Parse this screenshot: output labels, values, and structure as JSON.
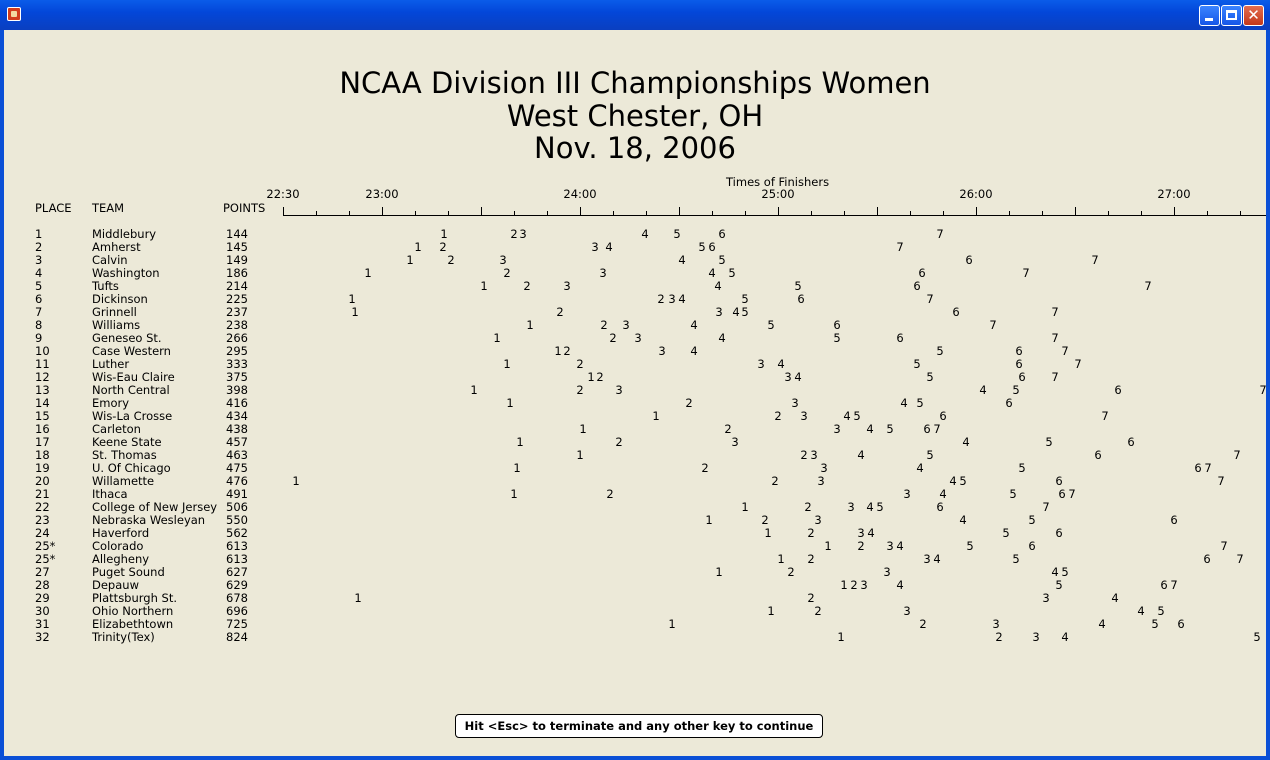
{
  "window": {
    "title": ""
  },
  "page_title": [
    "NCAA Division III Championships Women",
    "West Chester, OH",
    "Nov. 18, 2006"
  ],
  "axis": {
    "title": "Times of Finishers",
    "ticks": [
      "22:30",
      "23:00",
      "24:00",
      "25:00",
      "26:00",
      "27:00"
    ]
  },
  "columns": {
    "place": "PLACE",
    "team": "TEAM",
    "points": "POINTS"
  },
  "teams": [
    {
      "place": "1",
      "team": "Middlebury",
      "points": "144",
      "finishers": [
        [
          "1",
          444
        ],
        [
          "2",
          514
        ],
        [
          "3",
          523
        ],
        [
          "4",
          645
        ],
        [
          "5",
          677
        ],
        [
          "6",
          722
        ],
        [
          "7",
          940
        ]
      ]
    },
    {
      "place": "2",
      "team": "Amherst",
      "points": "145",
      "finishers": [
        [
          "1",
          418
        ],
        [
          "2",
          443
        ],
        [
          "3",
          595
        ],
        [
          "4",
          609
        ],
        [
          "5",
          702
        ],
        [
          "6",
          712
        ],
        [
          "7",
          900
        ]
      ]
    },
    {
      "place": "3",
      "team": "Calvin",
      "points": "149",
      "finishers": [
        [
          "1",
          410
        ],
        [
          "2",
          451
        ],
        [
          "3",
          503
        ],
        [
          "4",
          682
        ],
        [
          "5",
          722
        ],
        [
          "6",
          969
        ],
        [
          "7",
          1095
        ]
      ]
    },
    {
      "place": "4",
      "team": "Washington",
      "points": "186",
      "finishers": [
        [
          "1",
          368
        ],
        [
          "2",
          507
        ],
        [
          "3",
          603
        ],
        [
          "4",
          712
        ],
        [
          "5",
          732
        ],
        [
          "6",
          922
        ],
        [
          "7",
          1026
        ]
      ]
    },
    {
      "place": "5",
      "team": "Tufts",
      "points": "214",
      "finishers": [
        [
          "1",
          484
        ],
        [
          "2",
          527
        ],
        [
          "3",
          567
        ],
        [
          "4",
          718
        ],
        [
          "5",
          798
        ],
        [
          "6",
          917
        ],
        [
          "7",
          1148
        ]
      ]
    },
    {
      "place": "6",
      "team": "Dickinson",
      "points": "225",
      "finishers": [
        [
          "1",
          352
        ],
        [
          "2",
          661
        ],
        [
          "3",
          672
        ],
        [
          "4",
          682
        ],
        [
          "5",
          745
        ],
        [
          "6",
          801
        ],
        [
          "7",
          930
        ]
      ]
    },
    {
      "place": "7",
      "team": "Grinnell",
      "points": "237",
      "finishers": [
        [
          "1",
          355
        ],
        [
          "2",
          560
        ],
        [
          "3",
          719
        ],
        [
          "4",
          736
        ],
        [
          "5",
          745
        ],
        [
          "6",
          956
        ],
        [
          "7",
          1055
        ]
      ]
    },
    {
      "place": "8",
      "team": "Williams",
      "points": "238",
      "finishers": [
        [
          "1",
          530
        ],
        [
          "2",
          604
        ],
        [
          "3",
          626
        ],
        [
          "4",
          694
        ],
        [
          "5",
          771
        ],
        [
          "6",
          837
        ],
        [
          "7",
          993
        ]
      ]
    },
    {
      "place": "9",
      "team": "Geneseo St.",
      "points": "266",
      "finishers": [
        [
          "1",
          497
        ],
        [
          "2",
          613
        ],
        [
          "3",
          638
        ],
        [
          "4",
          722
        ],
        [
          "5",
          837
        ],
        [
          "6",
          900
        ],
        [
          "7",
          1055
        ]
      ]
    },
    {
      "place": "10",
      "team": "Case Western",
      "points": "295",
      "finishers": [
        [
          "1",
          558
        ],
        [
          "2",
          567
        ],
        [
          "3",
          662
        ],
        [
          "4",
          694
        ],
        [
          "5",
          940
        ],
        [
          "6",
          1019
        ],
        [
          "7",
          1065
        ]
      ]
    },
    {
      "place": "11",
      "team": "Luther",
      "points": "333",
      "finishers": [
        [
          "1",
          507
        ],
        [
          "2",
          580
        ],
        [
          "3",
          761
        ],
        [
          "4",
          781
        ],
        [
          "5",
          917
        ],
        [
          "6",
          1019
        ],
        [
          "7",
          1078
        ]
      ]
    },
    {
      "place": "12",
      "team": "Wis-Eau Claire",
      "points": "375",
      "finishers": [
        [
          "1",
          591
        ],
        [
          "2",
          600
        ],
        [
          "3",
          788
        ],
        [
          "4",
          798
        ],
        [
          "5",
          930
        ],
        [
          "6",
          1022
        ],
        [
          "7",
          1055
        ]
      ]
    },
    {
      "place": "13",
      "team": "North Central",
      "points": "398",
      "finishers": [
        [
          "1",
          474
        ],
        [
          "2",
          580
        ],
        [
          "3",
          619
        ],
        [
          "4",
          983
        ],
        [
          "5",
          1016
        ],
        [
          "6",
          1118
        ],
        [
          "7",
          1263
        ]
      ]
    },
    {
      "place": "14",
      "team": "Emory",
      "points": "416",
      "finishers": [
        [
          "1",
          510
        ],
        [
          "2",
          689
        ],
        [
          "3",
          795
        ],
        [
          "4",
          904
        ],
        [
          "5",
          920
        ],
        [
          "6",
          1009
        ]
      ]
    },
    {
      "place": "15",
      "team": "Wis-La Crosse",
      "points": "434",
      "finishers": [
        [
          "1",
          656
        ],
        [
          "2",
          778
        ],
        [
          "3",
          804
        ],
        [
          "4",
          847
        ],
        [
          "5",
          857
        ],
        [
          "6",
          943
        ],
        [
          "7",
          1105
        ]
      ]
    },
    {
      "place": "16",
      "team": "Carleton",
      "points": "438",
      "finishers": [
        [
          "1",
          583
        ],
        [
          "2",
          728
        ],
        [
          "3",
          837
        ],
        [
          "4",
          870
        ],
        [
          "5",
          890
        ],
        [
          "6",
          927
        ],
        [
          "7",
          937
        ]
      ]
    },
    {
      "place": "17",
      "team": "Keene State",
      "points": "457",
      "finishers": [
        [
          "1",
          520
        ],
        [
          "2",
          619
        ],
        [
          "3",
          735
        ],
        [
          "4",
          966
        ],
        [
          "5",
          1049
        ],
        [
          "6",
          1131
        ]
      ]
    },
    {
      "place": "18",
      "team": "St. Thomas",
      "points": "463",
      "finishers": [
        [
          "1",
          580
        ],
        [
          "2",
          804
        ],
        [
          "3",
          814
        ],
        [
          "4",
          861
        ],
        [
          "5",
          930
        ],
        [
          "6",
          1098
        ],
        [
          "7",
          1237
        ]
      ]
    },
    {
      "place": "19",
      "team": "U. Of Chicago",
      "points": "475",
      "finishers": [
        [
          "1",
          517
        ],
        [
          "2",
          705
        ],
        [
          "3",
          824
        ],
        [
          "4",
          920
        ],
        [
          "5",
          1022
        ],
        [
          "6",
          1198
        ],
        [
          "7",
          1208
        ]
      ]
    },
    {
      "place": "20",
      "team": "Willamette",
      "points": "476",
      "finishers": [
        [
          "1",
          296
        ],
        [
          "2",
          775
        ],
        [
          "3",
          821
        ],
        [
          "4",
          953
        ],
        [
          "5",
          963
        ],
        [
          "6",
          1059
        ],
        [
          "7",
          1221
        ]
      ]
    },
    {
      "place": "21",
      "team": "Ithaca",
      "points": "491",
      "finishers": [
        [
          "1",
          514
        ],
        [
          "2",
          610
        ],
        [
          "3",
          907
        ],
        [
          "4",
          943
        ],
        [
          "5",
          1013
        ],
        [
          "6",
          1062
        ],
        [
          "7",
          1072
        ]
      ]
    },
    {
      "place": "22",
      "team": "College of New Jersey",
      "points": "506",
      "finishers": [
        [
          "1",
          745
        ],
        [
          "2",
          808
        ],
        [
          "3",
          851
        ],
        [
          "4",
          870
        ],
        [
          "5",
          880
        ],
        [
          "6",
          940
        ],
        [
          "7",
          1046
        ]
      ]
    },
    {
      "place": "23",
      "team": "Nebraska Wesleyan",
      "points": "550",
      "finishers": [
        [
          "1",
          709
        ],
        [
          "2",
          765
        ],
        [
          "3",
          818
        ],
        [
          "4",
          963
        ],
        [
          "5",
          1032
        ],
        [
          "6",
          1174
        ]
      ]
    },
    {
      "place": "24",
      "team": "Haverford",
      "points": "562",
      "finishers": [
        [
          "1",
          768
        ],
        [
          "2",
          811
        ],
        [
          "3",
          861
        ],
        [
          "4",
          871
        ],
        [
          "5",
          1006
        ],
        [
          "6",
          1059
        ]
      ]
    },
    {
      "place": "25*",
      "team": "Colorado",
      "points": "613",
      "finishers": [
        [
          "1",
          828
        ],
        [
          "2",
          861
        ],
        [
          "3",
          890
        ],
        [
          "4",
          900
        ],
        [
          "5",
          970
        ],
        [
          "6",
          1032
        ],
        [
          "7",
          1224
        ]
      ]
    },
    {
      "place": "25*",
      "team": "Allegheny",
      "points": "613",
      "finishers": [
        [
          "1",
          781
        ],
        [
          "2",
          811
        ],
        [
          "3",
          927
        ],
        [
          "4",
          937
        ],
        [
          "5",
          1016
        ],
        [
          "6",
          1207
        ],
        [
          "7",
          1240
        ]
      ]
    },
    {
      "place": "27",
      "team": "Puget Sound",
      "points": "627",
      "finishers": [
        [
          "1",
          719
        ],
        [
          "2",
          791
        ],
        [
          "3",
          887
        ],
        [
          "4",
          1055
        ],
        [
          "5",
          1065
        ]
      ]
    },
    {
      "place": "28",
      "team": "Depauw",
      "points": "629",
      "finishers": [
        [
          "1",
          844
        ],
        [
          "2",
          854
        ],
        [
          "3",
          864
        ],
        [
          "4",
          900
        ],
        [
          "5",
          1059
        ],
        [
          "6",
          1164
        ],
        [
          "7",
          1174
        ]
      ]
    },
    {
      "place": "29",
      "team": "Plattsburgh St.",
      "points": "678",
      "finishers": [
        [
          "1",
          358
        ],
        [
          "2",
          811
        ],
        [
          "3",
          1046
        ],
        [
          "4",
          1115
        ]
      ]
    },
    {
      "place": "30",
      "team": "Ohio Northern",
      "points": "696",
      "finishers": [
        [
          "1",
          771
        ],
        [
          "2",
          818
        ],
        [
          "3",
          907
        ],
        [
          "4",
          1141
        ],
        [
          "5",
          1161
        ]
      ]
    },
    {
      "place": "31",
      "team": "Elizabethtown",
      "points": "725",
      "finishers": [
        [
          "1",
          672
        ],
        [
          "2",
          923
        ],
        [
          "3",
          996
        ],
        [
          "4",
          1102
        ],
        [
          "5",
          1155
        ],
        [
          "6",
          1181
        ]
      ]
    },
    {
      "place": "32",
      "team": "Trinity(Tex)",
      "points": "824",
      "finishers": [
        [
          "1",
          841
        ],
        [
          "2",
          999
        ],
        [
          "3",
          1036
        ],
        [
          "4",
          1065
        ],
        [
          "5",
          1257
        ]
      ]
    }
  ],
  "footer": {
    "prompt": "Hit <Esc> to terminate and any other key to continue"
  }
}
